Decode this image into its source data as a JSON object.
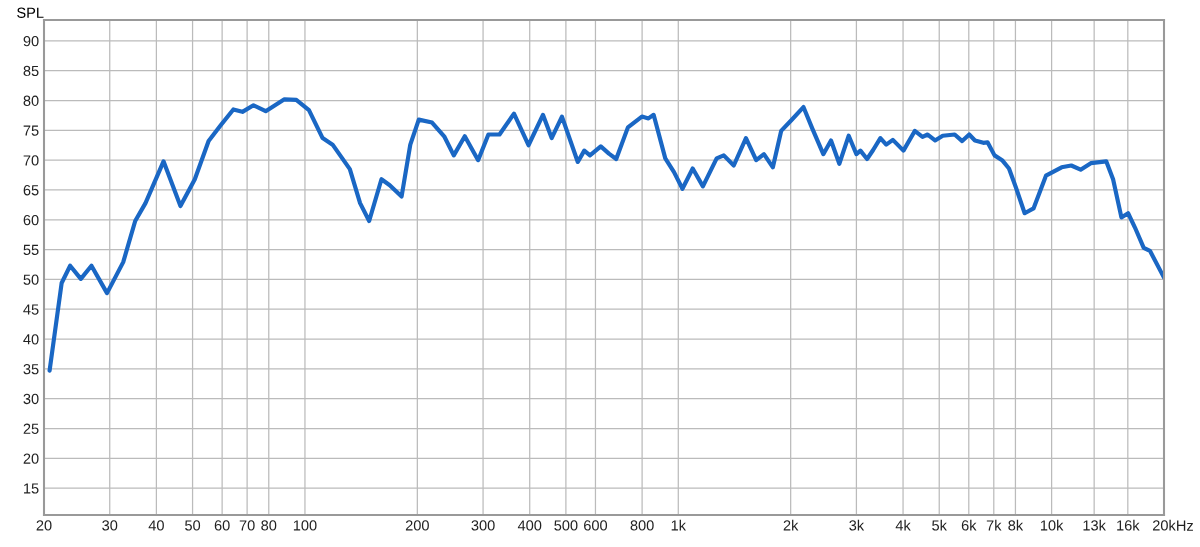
{
  "chart_data": {
    "type": "line",
    "ylabel": "SPL",
    "x": [
      20.7,
      22.3,
      23.5,
      25.1,
      26.8,
      29.5,
      32.6,
      35.1,
      37.4,
      41.8,
      46.4,
      50.7,
      55.2,
      59.4,
      64.3,
      68,
      72.8,
      78.5,
      88.1,
      94.8,
      102.5,
      111.5,
      118.6,
      131.9,
      140.5,
      148.6,
      160.3,
      168.7,
      181.5,
      191.5,
      201.8,
      219,
      236,
      250.4,
      268,
      291,
      310,
      332,
      363,
      397,
      434,
      458,
      488,
      538,
      560,
      580,
      620,
      652,
      682,
      733,
      799,
      832,
      859,
      923,
      974,
      1026,
      1093,
      1164,
      1267,
      1324,
      1408,
      1518,
      1617,
      1696,
      1792,
      1886,
      2008,
      2164,
      2289,
      2446,
      2565,
      2700,
      2861,
      3000,
      3075,
      3204,
      3326,
      3478,
      3606,
      3756,
      4010,
      4300,
      4510,
      4656,
      4873,
      5110,
      5500,
      5760,
      6016,
      6232,
      6566,
      6736,
      7033,
      7369,
      7688,
      8024,
      8469,
      8944,
      9657,
      10637,
      11289,
      11958,
      12737,
      14004,
      14610,
      15380,
      16030,
      16720,
      17650,
      18340,
      20000
    ],
    "series": [
      {
        "color": "#1a67c4",
        "values": [
          34.7,
          49.4,
          52.3,
          50.1,
          52.3,
          47.7,
          52.9,
          59.8,
          62.8,
          69.8,
          62.3,
          66.8,
          73.2,
          75.8,
          78.5,
          78.1,
          79.2,
          78.2,
          80.2,
          80.1,
          78.4,
          73.7,
          72.6,
          68.5,
          62.8,
          59.8,
          66.8,
          65.8,
          63.9,
          72.6,
          76.8,
          76.3,
          74.0,
          70.8,
          74.0,
          70.0,
          74.3,
          74.3,
          77.8,
          72.5,
          77.6,
          73.7,
          77.3,
          69.7,
          71.6,
          70.8,
          72.3,
          71.1,
          70.2,
          75.5,
          77.3,
          77.0,
          77.6,
          70.3,
          68.0,
          65.2,
          68.6,
          65.6,
          70.3,
          70.8,
          69.1,
          73.7,
          70.0,
          71.0,
          68.8,
          74.9,
          76.7,
          78.9,
          75.2,
          71.0,
          73.3,
          69.4,
          74.1,
          71.0,
          71.6,
          70.2,
          71.7,
          73.7,
          72.6,
          73.4,
          71.6,
          74.9,
          73.9,
          74.3,
          73.3,
          74.1,
          74.3,
          73.2,
          74.3,
          73.3,
          72.9,
          73.0,
          70.8,
          70.0,
          68.6,
          65.4,
          61.1,
          61.9,
          67.4,
          68.8,
          69.1,
          68.4,
          69.5,
          69.8,
          66.8,
          60.4,
          61.1,
          58.7,
          55.3,
          54.8,
          50.3
        ]
      }
    ],
    "log": "x",
    "xlim": [
      20,
      20000
    ],
    "ylim": [
      10.5,
      93.5
    ],
    "xticks": [
      20,
      30,
      40,
      50,
      60,
      70,
      80,
      100,
      200,
      300,
      400,
      500,
      600,
      800,
      {
        "value": 1000,
        "label": "1k"
      },
      {
        "value": 2000,
        "label": "2k"
      },
      {
        "value": 3000,
        "label": "3k"
      },
      {
        "value": 4000,
        "label": "4k"
      },
      {
        "value": 5000,
        "label": "5k"
      },
      {
        "value": 6000,
        "label": "6k"
      },
      {
        "value": 7000,
        "label": "7k"
      },
      {
        "value": 8000,
        "label": "8k"
      },
      {
        "value": 10000,
        "label": "10k"
      },
      {
        "value": 13000,
        "label": "13k"
      },
      {
        "value": 16000,
        "label": "16k"
      },
      {
        "value": 20000,
        "label": "20k"
      }
    ],
    "xlabel": "Hz",
    "yticks": [
      15,
      20,
      25,
      30,
      35,
      40,
      45,
      50,
      55,
      60,
      65,
      70,
      75,
      80,
      85,
      90
    ],
    "grid": true,
    "marker": "none",
    "line_style": "solid"
  }
}
